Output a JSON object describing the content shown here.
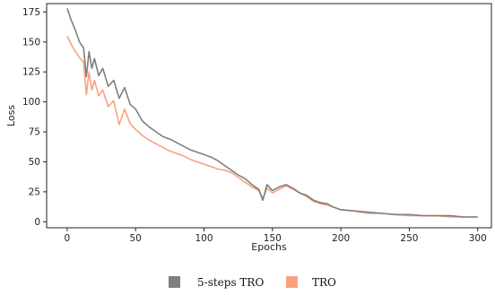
{
  "chart_data": {
    "type": "line",
    "xlabel": "Epochs",
    "ylabel": "Loss",
    "xlim": [
      -15,
      310
    ],
    "ylim": [
      -5,
      182
    ],
    "x_ticks": [
      0,
      50,
      100,
      150,
      200,
      250,
      300
    ],
    "y_ticks": [
      0,
      25,
      50,
      75,
      100,
      125,
      150,
      175
    ],
    "grid": false,
    "legend_position": "bottom-center",
    "series": [
      {
        "name": "5-steps TRO",
        "color": "#7f7f7f",
        "x": [
          0,
          3,
          6,
          9,
          12,
          14,
          16,
          18,
          20,
          23,
          26,
          30,
          34,
          38,
          42,
          46,
          50,
          55,
          60,
          65,
          70,
          75,
          80,
          85,
          90,
          95,
          100,
          105,
          110,
          115,
          120,
          125,
          130,
          135,
          140,
          143,
          146,
          150,
          155,
          160,
          165,
          170,
          175,
          180,
          185,
          190,
          195,
          200,
          210,
          220,
          230,
          240,
          250,
          260,
          270,
          280,
          290,
          300
        ],
        "y": [
          178,
          168,
          160,
          150,
          145,
          121,
          142,
          128,
          136,
          122,
          128,
          113,
          118,
          103,
          112,
          98,
          94,
          84,
          79,
          75,
          71,
          69,
          66,
          63,
          60,
          58,
          56,
          54,
          51,
          47,
          43,
          39,
          36,
          31,
          27,
          18,
          31,
          26,
          29,
          31,
          28,
          24,
          22,
          18,
          16,
          15,
          12,
          10,
          9,
          8,
          7,
          6,
          6,
          5,
          5,
          5,
          4,
          4
        ]
      },
      {
        "name": "TRO",
        "color": "#f9a27e",
        "x": [
          0,
          3,
          6,
          9,
          12,
          14,
          16,
          18,
          20,
          23,
          26,
          30,
          34,
          38,
          42,
          46,
          50,
          55,
          60,
          65,
          70,
          75,
          80,
          85,
          90,
          95,
          100,
          105,
          110,
          115,
          120,
          125,
          130,
          135,
          140,
          143,
          146,
          150,
          155,
          160,
          165,
          170,
          175,
          180,
          185,
          190,
          195,
          200,
          210,
          220,
          230,
          240,
          250,
          260,
          270,
          280,
          290,
          300
        ],
        "y": [
          155,
          148,
          142,
          137,
          133,
          106,
          125,
          110,
          118,
          105,
          110,
          96,
          101,
          81,
          94,
          82,
          77,
          72,
          68,
          65,
          62,
          59,
          57,
          55,
          52,
          50,
          48,
          46,
          44,
          43,
          41,
          37,
          33,
          29,
          26,
          19,
          28,
          24,
          27,
          30,
          27,
          24,
          21,
          17,
          15,
          14,
          12,
          10,
          9,
          7,
          7,
          6,
          5,
          5,
          5,
          4,
          4,
          4
        ]
      }
    ]
  }
}
